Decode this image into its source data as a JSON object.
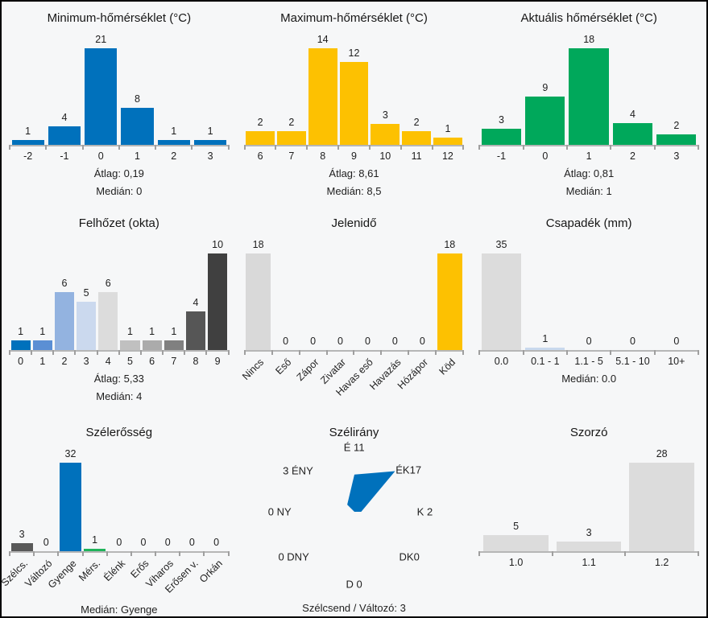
{
  "page": {
    "background": "#f6f7f8",
    "border_color": "#000000",
    "text_color": "#1e1e1e",
    "axis_color": "#b6b6b6"
  },
  "palette": {
    "blue": "#0071bc",
    "yellow": "#fdc101",
    "green": "#00a85b",
    "gray_light": "#dcdcdc",
    "gray_dark": "#595959",
    "light_blue": "#c9d9ee"
  },
  "chart_data": [
    {
      "type": "bar",
      "title": "Minimum-hőmérséklet (°C)",
      "categories": [
        "-2",
        "-1",
        "0",
        "1",
        "2",
        "3"
      ],
      "values": [
        1,
        4,
        21,
        8,
        1,
        1
      ],
      "bar_colors": [
        "#0071bc",
        "#0071bc",
        "#0071bc",
        "#0071bc",
        "#0071bc",
        "#0071bc"
      ],
      "rotated_labels": false,
      "footer": [
        "Átlag: 0,19",
        "Medián: 0"
      ]
    },
    {
      "type": "bar",
      "title": "Maximum-hőmérséklet (°C)",
      "categories": [
        "6",
        "7",
        "8",
        "9",
        "10",
        "11",
        "12"
      ],
      "values": [
        2,
        2,
        14,
        12,
        3,
        2,
        1
      ],
      "bar_colors": [
        "#fdc101",
        "#fdc101",
        "#fdc101",
        "#fdc101",
        "#fdc101",
        "#fdc101",
        "#fdc101"
      ],
      "rotated_labels": false,
      "footer": [
        "Átlag: 8,61",
        "Medián: 8,5"
      ]
    },
    {
      "type": "bar",
      "title": "Aktuális hőmérséklet (°C)",
      "categories": [
        "-1",
        "0",
        "1",
        "2",
        "3"
      ],
      "values": [
        3,
        9,
        18,
        4,
        2
      ],
      "bar_colors": [
        "#00a85b",
        "#00a85b",
        "#00a85b",
        "#00a85b",
        "#00a85b"
      ],
      "rotated_labels": false,
      "footer": [
        "Átlag: 0,81",
        "Medián: 1"
      ]
    },
    {
      "type": "bar",
      "title": "Felhőzet (okta)",
      "categories": [
        "0",
        "1",
        "2",
        "3",
        "4",
        "5",
        "6",
        "7",
        "8",
        "9"
      ],
      "values": [
        1,
        1,
        6,
        5,
        6,
        1,
        1,
        1,
        4,
        10
      ],
      "bar_colors": [
        "#0071bc",
        "#5b8fd4",
        "#93b3e0",
        "#cbd9ee",
        "#dcdcdc",
        "#c0c0c0",
        "#ababab",
        "#808080",
        "#565656",
        "#404040"
      ],
      "rotated_labels": false,
      "footer": [
        "Átlag: 5,33",
        "Medián: 4"
      ]
    },
    {
      "type": "bar",
      "title": "Jelenidő",
      "categories": [
        "Nincs",
        "Eső",
        "Zápor",
        "Zivatar",
        "Havas eső",
        "Havazás",
        "Hózápor",
        "Köd"
      ],
      "values": [
        18,
        0,
        0,
        0,
        0,
        0,
        0,
        18
      ],
      "bar_colors": [
        "#d9d9d9",
        "#d9d9d9",
        "#d9d9d9",
        "#d9d9d9",
        "#d9d9d9",
        "#d9d9d9",
        "#d9d9d9",
        "#fdc101"
      ],
      "rotated_labels": true,
      "footer": []
    },
    {
      "type": "bar",
      "title": "Csapadék (mm)",
      "categories": [
        "0.0",
        "0.1 - 1",
        "1.1 - 5",
        "5.1 - 10",
        "10+"
      ],
      "values": [
        35,
        1,
        0,
        0,
        0
      ],
      "bar_colors": [
        "#dcdcdc",
        "#c9d9ee",
        "#dcdcdc",
        "#dcdcdc",
        "#dcdcdc"
      ],
      "rotated_labels": false,
      "footer": [
        "Medián: 0.0"
      ]
    },
    {
      "type": "bar",
      "title": "Szélerősség",
      "categories": [
        "Szélcs.",
        "Változó",
        "Gyenge",
        "Mérs.",
        "Élénk",
        "Erős",
        "Viharos",
        "Erősen v.",
        "Orkán"
      ],
      "values": [
        3,
        0,
        32,
        1,
        0,
        0,
        0,
        0,
        0
      ],
      "bar_colors": [
        "#595959",
        "#9e9e9e",
        "#0071bc",
        "#1fb35a",
        "#9e9e9e",
        "#9e9e9e",
        "#9e9e9e",
        "#9e9e9e",
        "#9e9e9e"
      ],
      "rotated_labels": true,
      "footer": [
        "Medián: Gyenge"
      ]
    },
    {
      "type": "radar",
      "title": "Szélirány",
      "axes": [
        {
          "dir": "É",
          "value": 11,
          "label": "É 11"
        },
        {
          "dir": "ÉK",
          "value": 17,
          "label": "ÉK17"
        },
        {
          "dir": "K",
          "value": 2,
          "label": "K 2"
        },
        {
          "dir": "DK",
          "value": 0,
          "label": "DK0"
        },
        {
          "dir": "D",
          "value": 0,
          "label": "D 0"
        },
        {
          "dir": "DNY",
          "value": 0,
          "label": "0 DNY"
        },
        {
          "dir": "NY",
          "value": 0,
          "label": "0 NY"
        },
        {
          "dir": "ÉNY",
          "value": 3,
          "label": "3 ÉNY"
        }
      ],
      "fill_color": "#0071bc",
      "footer": [
        "Szélcsend / Változó: 3"
      ]
    },
    {
      "type": "bar",
      "title": "Szorzó",
      "categories": [
        "1.0",
        "1.1",
        "1.2"
      ],
      "values": [
        5,
        3,
        28
      ],
      "bar_colors": [
        "#dcdcdc",
        "#dcdcdc",
        "#dcdcdc"
      ],
      "rotated_labels": false,
      "footer": []
    }
  ]
}
